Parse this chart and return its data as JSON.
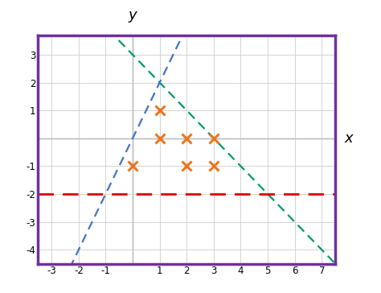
{
  "xlabel": "x",
  "ylabel": "y",
  "xlim": [
    -3.5,
    7.5
  ],
  "ylim": [
    -4.5,
    3.7
  ],
  "xticks": [
    -3,
    -2,
    -1,
    0,
    1,
    2,
    3,
    4,
    5,
    6,
    7
  ],
  "yticks": [
    -4,
    -3,
    -2,
    -1,
    0,
    1,
    2,
    3
  ],
  "green_slope": -1,
  "green_intercept": 3,
  "green_color": "#009966",
  "blue_slope": 2,
  "blue_intercept": 0,
  "blue_color": "#4472c4",
  "red_y": -2,
  "red_color": "#dd0000",
  "cross_points": [
    [
      0,
      -1
    ],
    [
      1,
      1
    ],
    [
      1,
      0
    ],
    [
      2,
      0
    ],
    [
      2,
      -1
    ],
    [
      3,
      0
    ],
    [
      3,
      -1
    ]
  ],
  "cross_color": "#e87722",
  "border_color": "#7030a0",
  "bg_color": "#ffffff",
  "grid_color": "#cccccc",
  "spine_color": "#888888",
  "figsize": [
    4.74,
    3.64
  ],
  "dpi": 100
}
